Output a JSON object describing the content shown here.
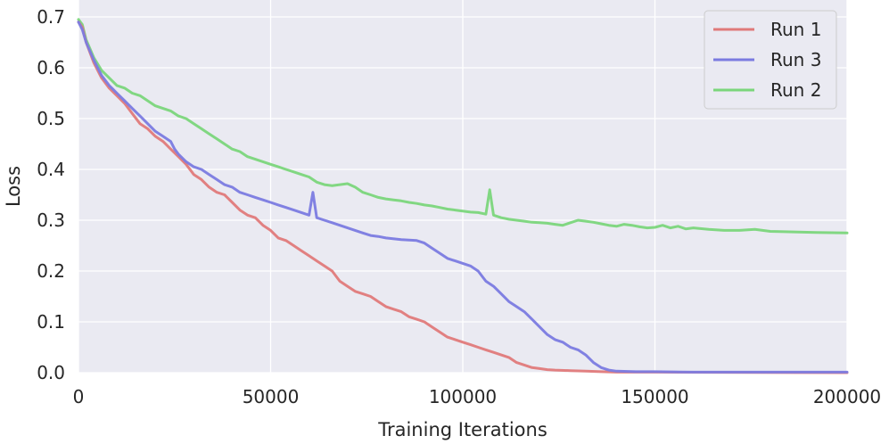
{
  "chart_data": {
    "type": "line",
    "xlabel": "Training Iterations",
    "ylabel": "Loss",
    "xlim": [
      0,
      200000
    ],
    "ylim": [
      0,
      0.7
    ],
    "xticks": [
      0,
      50000,
      100000,
      150000,
      200000
    ],
    "xtick_labels": [
      "0",
      "50000",
      "100000",
      "150000",
      "200000"
    ],
    "yticks": [
      0.0,
      0.1,
      0.2,
      0.3,
      0.4,
      0.5,
      0.6,
      0.7
    ],
    "ytick_labels": [
      "0.0",
      "0.1",
      "0.2",
      "0.3",
      "0.4",
      "0.5",
      "0.6",
      "0.7"
    ],
    "grid": true,
    "legend_position": "top-right",
    "series": [
      {
        "name": "Run 1",
        "color": "#e07a7a",
        "points": [
          [
            0,
            0.69
          ],
          [
            1000,
            0.68
          ],
          [
            2000,
            0.65
          ],
          [
            4000,
            0.61
          ],
          [
            6000,
            0.58
          ],
          [
            8000,
            0.56
          ],
          [
            10000,
            0.545
          ],
          [
            12000,
            0.53
          ],
          [
            14000,
            0.51
          ],
          [
            16000,
            0.49
          ],
          [
            18000,
            0.48
          ],
          [
            20000,
            0.465
          ],
          [
            22000,
            0.455
          ],
          [
            24000,
            0.44
          ],
          [
            26000,
            0.425
          ],
          [
            28000,
            0.41
          ],
          [
            30000,
            0.39
          ],
          [
            32000,
            0.38
          ],
          [
            34000,
            0.365
          ],
          [
            36000,
            0.355
          ],
          [
            38000,
            0.35
          ],
          [
            40000,
            0.335
          ],
          [
            42000,
            0.32
          ],
          [
            44000,
            0.31
          ],
          [
            46000,
            0.305
          ],
          [
            48000,
            0.29
          ],
          [
            50000,
            0.28
          ],
          [
            52000,
            0.265
          ],
          [
            54000,
            0.26
          ],
          [
            56000,
            0.25
          ],
          [
            58000,
            0.24
          ],
          [
            60000,
            0.23
          ],
          [
            62000,
            0.22
          ],
          [
            64000,
            0.21
          ],
          [
            66000,
            0.2
          ],
          [
            68000,
            0.18
          ],
          [
            70000,
            0.17
          ],
          [
            72000,
            0.16
          ],
          [
            74000,
            0.155
          ],
          [
            76000,
            0.15
          ],
          [
            78000,
            0.14
          ],
          [
            80000,
            0.13
          ],
          [
            82000,
            0.125
          ],
          [
            84000,
            0.12
          ],
          [
            86000,
            0.11
          ],
          [
            88000,
            0.105
          ],
          [
            90000,
            0.1
          ],
          [
            92000,
            0.09
          ],
          [
            94000,
            0.08
          ],
          [
            96000,
            0.07
          ],
          [
            98000,
            0.065
          ],
          [
            100000,
            0.06
          ],
          [
            102000,
            0.055
          ],
          [
            104000,
            0.05
          ],
          [
            106000,
            0.045
          ],
          [
            108000,
            0.04
          ],
          [
            110000,
            0.035
          ],
          [
            112000,
            0.03
          ],
          [
            114000,
            0.02
          ],
          [
            116000,
            0.015
          ],
          [
            118000,
            0.01
          ],
          [
            120000,
            0.008
          ],
          [
            122000,
            0.006
          ],
          [
            124000,
            0.005
          ],
          [
            128000,
            0.004
          ],
          [
            132000,
            0.003
          ],
          [
            136000,
            0.002
          ],
          [
            140000,
            0.001
          ],
          [
            150000,
            0.001
          ],
          [
            200000,
            0.0
          ]
        ]
      },
      {
        "name": "Run 3",
        "color": "#7b7be0",
        "points": [
          [
            0,
            0.69
          ],
          [
            1000,
            0.675
          ],
          [
            2000,
            0.65
          ],
          [
            4000,
            0.615
          ],
          [
            6000,
            0.585
          ],
          [
            8000,
            0.565
          ],
          [
            10000,
            0.55
          ],
          [
            12000,
            0.535
          ],
          [
            14000,
            0.52
          ],
          [
            16000,
            0.505
          ],
          [
            18000,
            0.49
          ],
          [
            20000,
            0.475
          ],
          [
            22000,
            0.465
          ],
          [
            24000,
            0.455
          ],
          [
            25000,
            0.44
          ],
          [
            26000,
            0.43
          ],
          [
            28000,
            0.415
          ],
          [
            30000,
            0.405
          ],
          [
            32000,
            0.4
          ],
          [
            34000,
            0.39
          ],
          [
            36000,
            0.38
          ],
          [
            38000,
            0.37
          ],
          [
            40000,
            0.365
          ],
          [
            42000,
            0.355
          ],
          [
            44000,
            0.35
          ],
          [
            46000,
            0.345
          ],
          [
            48000,
            0.34
          ],
          [
            50000,
            0.335
          ],
          [
            52000,
            0.33
          ],
          [
            54000,
            0.325
          ],
          [
            56000,
            0.32
          ],
          [
            58000,
            0.315
          ],
          [
            60000,
            0.31
          ],
          [
            61000,
            0.355
          ],
          [
            62000,
            0.305
          ],
          [
            64000,
            0.3
          ],
          [
            66000,
            0.295
          ],
          [
            68000,
            0.29
          ],
          [
            70000,
            0.285
          ],
          [
            72000,
            0.28
          ],
          [
            74000,
            0.275
          ],
          [
            76000,
            0.27
          ],
          [
            78000,
            0.268
          ],
          [
            80000,
            0.265
          ],
          [
            84000,
            0.262
          ],
          [
            88000,
            0.26
          ],
          [
            90000,
            0.255
          ],
          [
            92000,
            0.245
          ],
          [
            94000,
            0.235
          ],
          [
            96000,
            0.225
          ],
          [
            98000,
            0.22
          ],
          [
            100000,
            0.215
          ],
          [
            102000,
            0.21
          ],
          [
            104000,
            0.2
          ],
          [
            106000,
            0.18
          ],
          [
            108000,
            0.17
          ],
          [
            110000,
            0.155
          ],
          [
            112000,
            0.14
          ],
          [
            114000,
            0.13
          ],
          [
            116000,
            0.12
          ],
          [
            118000,
            0.105
          ],
          [
            120000,
            0.09
          ],
          [
            122000,
            0.075
          ],
          [
            124000,
            0.065
          ],
          [
            126000,
            0.06
          ],
          [
            128000,
            0.05
          ],
          [
            130000,
            0.045
          ],
          [
            132000,
            0.035
          ],
          [
            134000,
            0.02
          ],
          [
            136000,
            0.01
          ],
          [
            138000,
            0.005
          ],
          [
            140000,
            0.003
          ],
          [
            145000,
            0.002
          ],
          [
            150000,
            0.002
          ],
          [
            160000,
            0.001
          ],
          [
            200000,
            0.001
          ]
        ]
      },
      {
        "name": "Run 2",
        "color": "#7bd67b",
        "points": [
          [
            0,
            0.695
          ],
          [
            1000,
            0.685
          ],
          [
            2000,
            0.655
          ],
          [
            4000,
            0.62
          ],
          [
            6000,
            0.595
          ],
          [
            8000,
            0.58
          ],
          [
            10000,
            0.565
          ],
          [
            12000,
            0.56
          ],
          [
            14000,
            0.55
          ],
          [
            16000,
            0.545
          ],
          [
            18000,
            0.535
          ],
          [
            20000,
            0.525
          ],
          [
            22000,
            0.52
          ],
          [
            24000,
            0.515
          ],
          [
            26000,
            0.505
          ],
          [
            28000,
            0.5
          ],
          [
            30000,
            0.49
          ],
          [
            32000,
            0.48
          ],
          [
            34000,
            0.47
          ],
          [
            36000,
            0.46
          ],
          [
            38000,
            0.45
          ],
          [
            40000,
            0.44
          ],
          [
            42000,
            0.435
          ],
          [
            44000,
            0.425
          ],
          [
            46000,
            0.42
          ],
          [
            48000,
            0.415
          ],
          [
            50000,
            0.41
          ],
          [
            52000,
            0.405
          ],
          [
            54000,
            0.4
          ],
          [
            56000,
            0.395
          ],
          [
            58000,
            0.39
          ],
          [
            60000,
            0.385
          ],
          [
            62000,
            0.375
          ],
          [
            64000,
            0.37
          ],
          [
            66000,
            0.368
          ],
          [
            68000,
            0.37
          ],
          [
            70000,
            0.372
          ],
          [
            72000,
            0.365
          ],
          [
            74000,
            0.355
          ],
          [
            76000,
            0.35
          ],
          [
            78000,
            0.345
          ],
          [
            80000,
            0.342
          ],
          [
            82000,
            0.34
          ],
          [
            84000,
            0.338
          ],
          [
            86000,
            0.335
          ],
          [
            88000,
            0.333
          ],
          [
            90000,
            0.33
          ],
          [
            92000,
            0.328
          ],
          [
            94000,
            0.325
          ],
          [
            96000,
            0.322
          ],
          [
            98000,
            0.32
          ],
          [
            100000,
            0.318
          ],
          [
            102000,
            0.316
          ],
          [
            104000,
            0.315
          ],
          [
            106000,
            0.312
          ],
          [
            107000,
            0.36
          ],
          [
            108000,
            0.31
          ],
          [
            110000,
            0.305
          ],
          [
            112000,
            0.302
          ],
          [
            114000,
            0.3
          ],
          [
            116000,
            0.298
          ],
          [
            118000,
            0.296
          ],
          [
            120000,
            0.295
          ],
          [
            122000,
            0.294
          ],
          [
            124000,
            0.292
          ],
          [
            126000,
            0.29
          ],
          [
            128000,
            0.295
          ],
          [
            130000,
            0.3
          ],
          [
            132000,
            0.298
          ],
          [
            134000,
            0.296
          ],
          [
            136000,
            0.293
          ],
          [
            138000,
            0.29
          ],
          [
            140000,
            0.288
          ],
          [
            142000,
            0.292
          ],
          [
            144000,
            0.29
          ],
          [
            146000,
            0.287
          ],
          [
            148000,
            0.285
          ],
          [
            150000,
            0.286
          ],
          [
            152000,
            0.29
          ],
          [
            154000,
            0.285
          ],
          [
            156000,
            0.288
          ],
          [
            158000,
            0.283
          ],
          [
            160000,
            0.285
          ],
          [
            164000,
            0.282
          ],
          [
            168000,
            0.28
          ],
          [
            172000,
            0.28
          ],
          [
            176000,
            0.282
          ],
          [
            180000,
            0.278
          ],
          [
            186000,
            0.277
          ],
          [
            192000,
            0.276
          ],
          [
            200000,
            0.275
          ]
        ]
      }
    ]
  }
}
